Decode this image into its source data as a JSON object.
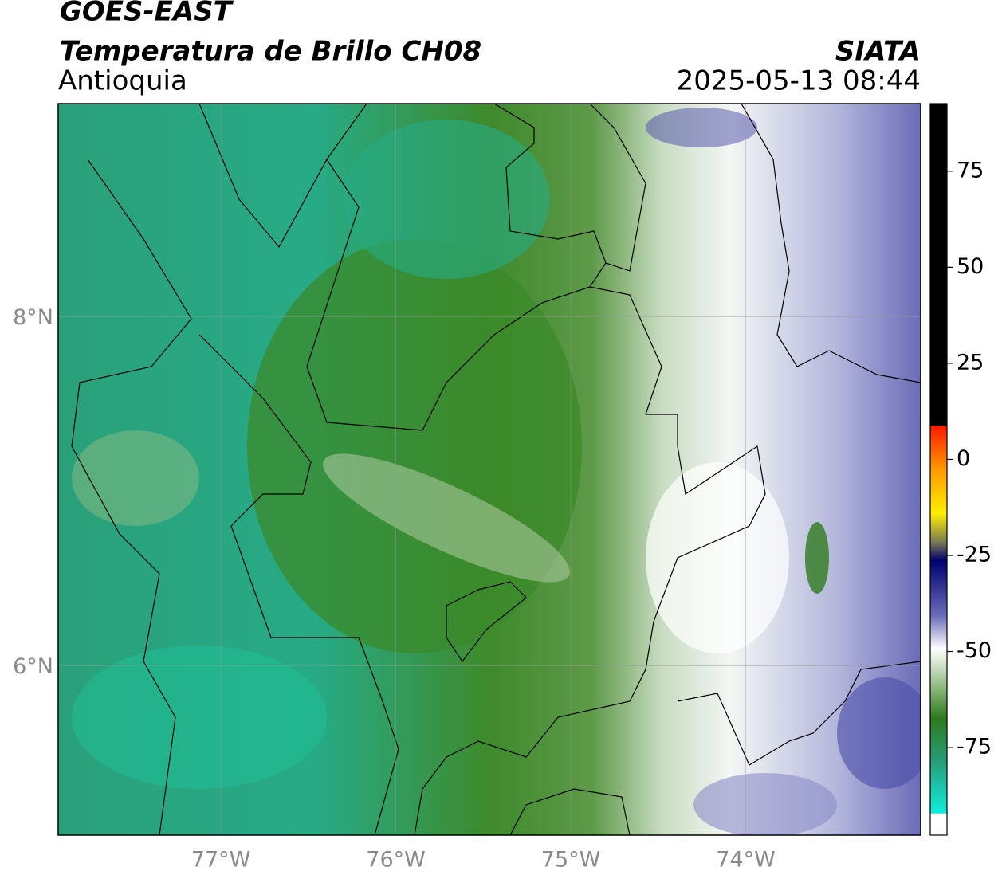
{
  "header": {
    "agency": "GOES-EAST",
    "product": "Temperatura de Brillo CH08",
    "region": "Antioquia",
    "source": "SIATA",
    "datetime": "2025-05-13 08:44"
  },
  "map": {
    "xlim": [
      -77.93,
      -73.0
    ],
    "ylim": [
      5.03,
      9.22
    ],
    "xticks": [
      {
        "value": -77,
        "label": "77°W"
      },
      {
        "value": -76,
        "label": "76°W"
      },
      {
        "value": -75,
        "label": "75°W"
      },
      {
        "value": -74,
        "label": "74°W"
      }
    ],
    "yticks": [
      {
        "value": 8,
        "label": "8°N"
      },
      {
        "value": 6,
        "label": "6°N"
      }
    ]
  },
  "colorbar": {
    "lim": [
      -97.8,
      92.6
    ],
    "ticks": [
      75,
      50,
      25,
      0,
      -25,
      -50,
      -75
    ]
  }
}
